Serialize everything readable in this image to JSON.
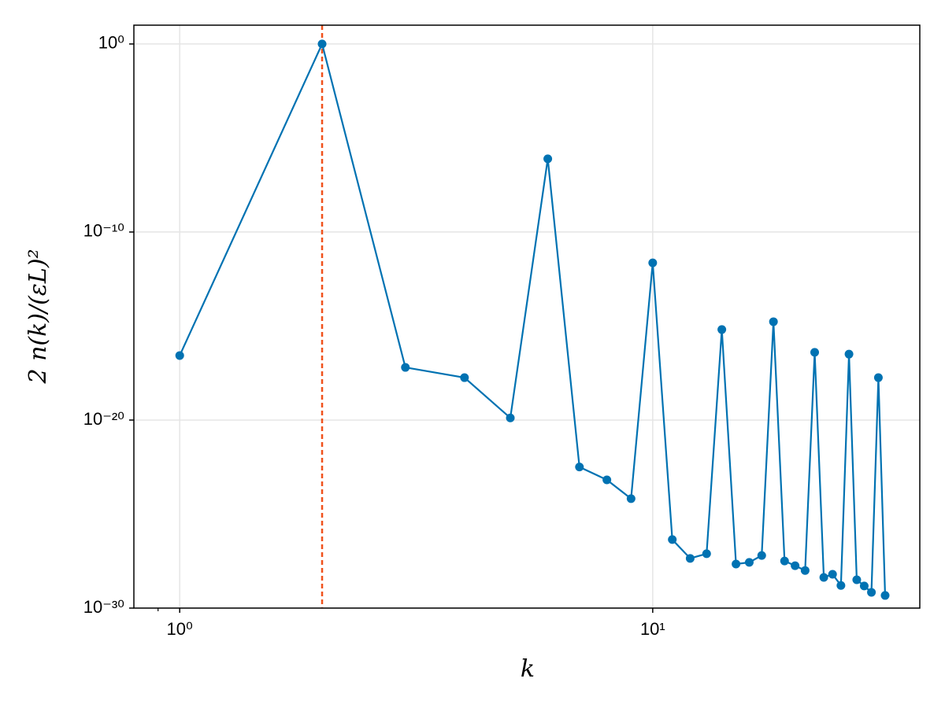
{
  "chart_data": {
    "type": "line",
    "xlabel": "k",
    "ylabel": "2 n(k)/(εL)²",
    "x": [
      1,
      2,
      3,
      4,
      5,
      6,
      7,
      8,
      9,
      10,
      11,
      12,
      13,
      14,
      15,
      16,
      17,
      18,
      19,
      20,
      21,
      22,
      23,
      24,
      25,
      26,
      27,
      28,
      29,
      30,
      31
    ],
    "series": [
      {
        "color": "#0072b2",
        "values": [
          2.7e-17,
          1,
          6.3e-18,
          1.8e-18,
          1.3e-20,
          7.8e-07,
          3.2e-23,
          6.6e-24,
          6.6e-25,
          2.3e-12,
          4.4e-27,
          4.4e-28,
          7.8e-28,
          6.5e-16,
          2.2e-28,
          2.7e-28,
          6.3e-28,
          1.7e-15,
          3.2e-28,
          1.8e-28,
          1e-28,
          4e-17,
          4.3e-29,
          6.3e-29,
          1.6e-29,
          3.2e-17,
          3.2e-29,
          1.5e-29,
          6.9e-30,
          1.8e-18,
          4.7e-30
        ]
      }
    ],
    "xscale": "log",
    "yscale": "log",
    "xlim": [
      0.8,
      36.7
    ],
    "ylim": [
      1e-30,
      10
    ],
    "xticks": [
      {
        "value": 1,
        "label": "10⁰"
      },
      {
        "value": 10,
        "label": "10¹"
      }
    ],
    "xminorticks": [
      0.9
    ],
    "yticks": [
      {
        "value": 1e-30,
        "label": "10⁻³⁰"
      },
      {
        "value": 1e-20,
        "label": "10⁻²⁰"
      },
      {
        "value": 1e-10,
        "label": "10⁻¹⁰"
      },
      {
        "value": 1,
        "label": "10⁰"
      }
    ],
    "vline": {
      "x": 2,
      "color": "#f0521c"
    },
    "grid": true
  }
}
